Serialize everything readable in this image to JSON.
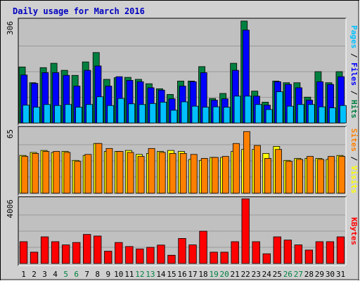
{
  "chart_data": {
    "type": "bar",
    "title": "Daily usage for March 2016",
    "categories": [
      "1",
      "2",
      "3",
      "4",
      "5",
      "6",
      "7",
      "8",
      "9",
      "10",
      "11",
      "12",
      "13",
      "14",
      "15",
      "16",
      "17",
      "18",
      "19",
      "20",
      "21",
      "22",
      "23",
      "24",
      "25",
      "26",
      "27",
      "28",
      "29",
      "30",
      "31"
    ],
    "weekend_days": [
      "5",
      "6",
      "12",
      "13",
      "19",
      "20",
      "26",
      "27"
    ],
    "colors": {
      "hits": "#008040",
      "files": "#0000FF",
      "pages": "#00C0FF",
      "visits": "#FFFF00",
      "sites": "#FF8000",
      "kbytes": "#FF0000",
      "title": "#0000C0",
      "weekday_label": "#000000",
      "weekend_label": "#008040",
      "plot_bg": "#C0C0C0",
      "frame_bg": "#D0D0D0"
    },
    "panels": [
      {
        "name": "hits-files-pages",
        "ymax_label": "306",
        "ymax": 306,
        "legend": [
          {
            "key": "pages",
            "text": "Pages"
          },
          {
            "key": "sep",
            "text": " / "
          },
          {
            "key": "files",
            "text": "Files"
          },
          {
            "key": "sep",
            "text": " / "
          },
          {
            "key": "hits",
            "text": "Hits"
          }
        ],
        "series": [
          {
            "name": "Hits",
            "key": "hits",
            "values": [
              167,
              120,
              165,
              178,
              157,
              142,
              182,
              210,
              130,
              135,
              136,
              130,
              117,
              102,
              85,
              125,
              125,
              168,
              73,
              88,
              178,
              304,
              95,
              62,
              125,
              120,
              120,
              77,
              153,
              120,
              153
            ]
          },
          {
            "name": "Files",
            "key": "files",
            "values": [
              143,
              118,
              150,
              150,
              142,
              110,
              157,
              170,
              110,
              138,
              127,
              123,
              105,
              98,
              72,
              110,
              123,
              150,
              68,
              72,
              157,
              277,
              80,
              53,
              123,
              115,
              105,
              68,
              123,
              115,
              138
            ]
          },
          {
            "name": "Pages",
            "key": "pages",
            "values": [
              53,
              47,
              55,
              52,
              55,
              47,
              55,
              78,
              52,
              73,
              57,
              55,
              58,
              62,
              38,
              63,
              50,
              47,
              48,
              47,
              80,
              80,
              55,
              40,
              93,
              50,
              55,
              55,
              48,
              45,
              52
            ]
          }
        ]
      },
      {
        "name": "visits-sites",
        "ymax_label": "65",
        "ymax": 65,
        "legend": [
          {
            "key": "sites",
            "text": "Sites"
          },
          {
            "key": "sep",
            "text": " / "
          },
          {
            "key": "visits",
            "text": "Visits"
          }
        ],
        "series": [
          {
            "name": "Visits",
            "key": "visits",
            "values": [
              38,
              41,
              43,
              41,
              42,
              33,
              38,
              50,
              42,
              42,
              43,
              39,
              40,
              42,
              43,
              42,
              34,
              33,
              36,
              36,
              42,
              44,
              44,
              40,
              47,
              33,
              35,
              35,
              35,
              34,
              38
            ]
          },
          {
            "name": "Sites",
            "key": "sites",
            "values": [
              37,
              40,
              42,
              42,
              41,
              32,
              39,
              50,
              45,
              42,
              41,
              37,
              45,
              41,
              40,
              40,
              39,
              35,
              36,
              37,
              50,
              62,
              48,
              35,
              44,
              32,
              34,
              37,
              34,
              37,
              37
            ]
          }
        ]
      },
      {
        "name": "kbytes",
        "ymax_label": "4006",
        "ymax": 4006,
        "legend": [
          {
            "key": "kbytes",
            "text": "KBytes"
          }
        ],
        "series": [
          {
            "name": "KBytes",
            "key": "kbytes",
            "values": [
              1350,
              700,
              1650,
              1350,
              1150,
              1300,
              1800,
              1700,
              760,
              1300,
              1050,
              900,
              1000,
              1140,
              510,
              1550,
              1150,
              2000,
              700,
              700,
              1350,
              4006,
              1350,
              600,
              1650,
              1450,
              1150,
              830,
              1350,
              1350,
              1650
            ]
          }
        ]
      }
    ]
  }
}
